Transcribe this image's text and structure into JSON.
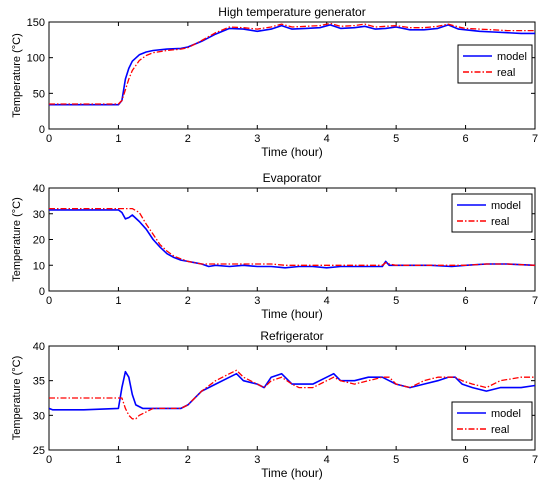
{
  "chart_data": [
    {
      "type": "line",
      "title": "High temperature generator",
      "xlabel": "Time (hour)",
      "ylabel": "Temperature (°C)",
      "xlim": [
        0,
        7
      ],
      "ylim": [
        0,
        150
      ],
      "xticks": [
        0,
        1,
        2,
        3,
        4,
        5,
        6,
        7
      ],
      "yticks": [
        0,
        50,
        100,
        150
      ],
      "xtick_labels": [
        "0",
        "1",
        "2",
        "3",
        "4",
        "5",
        "6",
        "7"
      ],
      "ytick_labels": [
        "0",
        "50",
        "100",
        "150"
      ],
      "grid": false,
      "legend": "right",
      "series": [
        {
          "name": "model",
          "color": "#0000ff",
          "style": "solid",
          "x": [
            0,
            0.5,
            1.0,
            1.05,
            1.1,
            1.15,
            1.2,
            1.3,
            1.4,
            1.5,
            1.7,
            1.9,
            2.0,
            2.2,
            2.4,
            2.6,
            2.8,
            3.0,
            3.2,
            3.35,
            3.5,
            3.7,
            3.9,
            4.05,
            4.2,
            4.4,
            4.55,
            4.7,
            4.85,
            5.0,
            5.2,
            5.4,
            5.6,
            5.75,
            5.9,
            6.0,
            6.2,
            6.4,
            6.6,
            6.8,
            7.0
          ],
          "y": [
            34,
            34,
            34,
            40,
            70,
            85,
            95,
            104,
            108,
            110,
            112,
            113,
            115,
            123,
            133,
            141,
            140,
            137,
            140,
            145,
            140,
            141,
            142,
            146,
            141,
            142,
            144,
            140,
            141,
            143,
            139,
            139,
            141,
            146,
            140,
            139,
            137,
            136,
            135,
            134,
            134
          ]
        },
        {
          "name": "real",
          "color": "#ff0000",
          "style": "dashdot",
          "x": [
            0,
            0.5,
            1.0,
            1.05,
            1.1,
            1.15,
            1.2,
            1.3,
            1.4,
            1.5,
            1.7,
            1.9,
            2.0,
            2.2,
            2.4,
            2.6,
            2.8,
            3.0,
            3.2,
            3.35,
            3.5,
            3.7,
            3.9,
            4.05,
            4.2,
            4.4,
            4.55,
            4.7,
            4.85,
            5.0,
            5.2,
            5.4,
            5.6,
            5.75,
            5.9,
            6.0,
            6.2,
            6.4,
            6.6,
            6.8,
            7.0
          ],
          "y": [
            35,
            35,
            35,
            40,
            55,
            70,
            82,
            96,
            103,
            107,
            110,
            112,
            114,
            124,
            135,
            143,
            142,
            140,
            143,
            147,
            143,
            144,
            145,
            148,
            144,
            145,
            147,
            143,
            144,
            145,
            142,
            142,
            144,
            147,
            143,
            141,
            140,
            139,
            138,
            138,
            138
          ]
        }
      ]
    },
    {
      "type": "line",
      "title": "Evaporator",
      "xlabel": "Time (hour)",
      "ylabel": "Temperature (°C)",
      "xlim": [
        0,
        7
      ],
      "ylim": [
        0,
        40
      ],
      "xticks": [
        0,
        1,
        2,
        3,
        4,
        5,
        6,
        7
      ],
      "yticks": [
        0,
        10,
        20,
        30,
        40
      ],
      "xtick_labels": [
        "0",
        "1",
        "2",
        "3",
        "4",
        "5",
        "6",
        "7"
      ],
      "ytick_labels": [
        "0",
        "10",
        "20",
        "30",
        "40"
      ],
      "grid": false,
      "legend": "top-right",
      "series": [
        {
          "name": "model",
          "color": "#0000ff",
          "style": "solid",
          "x": [
            0,
            0.5,
            1.0,
            1.05,
            1.1,
            1.15,
            1.2,
            1.3,
            1.4,
            1.5,
            1.6,
            1.7,
            1.8,
            1.9,
            2.0,
            2.1,
            2.2,
            2.3,
            2.4,
            2.6,
            2.8,
            3.0,
            3.2,
            3.4,
            3.6,
            3.8,
            4.0,
            4.2,
            4.4,
            4.6,
            4.8,
            4.85,
            4.9,
            5.0,
            5.2,
            5.5,
            5.8,
            6.0,
            6.3,
            6.6,
            7.0
          ],
          "y": [
            31.5,
            31.5,
            31.5,
            30.5,
            28,
            28.5,
            29.5,
            27,
            24,
            20,
            17,
            14.5,
            13,
            12,
            11.5,
            11,
            10.5,
            9.5,
            10,
            9.5,
            10,
            9.5,
            9.5,
            9,
            9.5,
            9.5,
            9,
            9.5,
            9.5,
            9.5,
            9.5,
            11.5,
            10,
            10,
            10,
            10,
            9.5,
            10,
            10.5,
            10.5,
            10
          ]
        },
        {
          "name": "real",
          "color": "#ff0000",
          "style": "dashdot",
          "x": [
            0,
            0.5,
            1.0,
            1.1,
            1.2,
            1.3,
            1.4,
            1.5,
            1.6,
            1.7,
            1.8,
            1.9,
            2.0,
            2.1,
            2.2,
            2.3,
            2.4,
            2.6,
            2.8,
            3.0,
            3.2,
            3.4,
            3.6,
            3.8,
            4.0,
            4.2,
            4.4,
            4.6,
            4.8,
            4.85,
            4.9,
            5.0,
            5.2,
            5.5,
            5.8,
            6.0,
            6.3,
            6.6,
            7.0
          ],
          "y": [
            32,
            32,
            32,
            32,
            32,
            30.5,
            26,
            22,
            18,
            15.5,
            13.5,
            12.5,
            11.5,
            11,
            10.5,
            10.5,
            10.5,
            10.5,
            10.5,
            10.5,
            10.5,
            10,
            10,
            10,
            10,
            10,
            10,
            10,
            10,
            11,
            10.5,
            10,
            10,
            10,
            10,
            10,
            10.5,
            10.5,
            10
          ]
        }
      ]
    },
    {
      "type": "line",
      "title": "Refrigerator",
      "xlabel": "Time (hour)",
      "ylabel": "Temperature (°C)",
      "xlim": [
        0,
        7
      ],
      "ylim": [
        25,
        40
      ],
      "xticks": [
        0,
        1,
        2,
        3,
        4,
        5,
        6,
        7
      ],
      "yticks": [
        25,
        30,
        35,
        40
      ],
      "xtick_labels": [
        "0",
        "1",
        "2",
        "3",
        "4",
        "5",
        "6",
        "7"
      ],
      "ytick_labels": [
        "25",
        "30",
        "35",
        "40"
      ],
      "grid": false,
      "legend": "bottom-right",
      "series": [
        {
          "name": "model",
          "color": "#0000ff",
          "style": "solid",
          "x": [
            0,
            0.05,
            0.5,
            1.0,
            1.05,
            1.1,
            1.15,
            1.2,
            1.25,
            1.35,
            1.5,
            1.7,
            1.9,
            2.0,
            2.2,
            2.4,
            2.6,
            2.7,
            2.8,
            3.0,
            3.1,
            3.2,
            3.35,
            3.5,
            3.6,
            3.8,
            4.0,
            4.1,
            4.2,
            4.4,
            4.6,
            4.8,
            4.9,
            5.0,
            5.2,
            5.4,
            5.6,
            5.75,
            5.85,
            5.95,
            6.1,
            6.3,
            6.5,
            6.8,
            7.0
          ],
          "y": [
            31,
            30.8,
            30.8,
            31,
            34,
            36.3,
            35.5,
            33,
            31.5,
            31,
            31,
            31,
            31,
            31.5,
            33.5,
            34.5,
            35.5,
            36,
            35,
            34.5,
            34,
            35.5,
            36,
            34.5,
            34.5,
            34.5,
            35.5,
            36,
            35,
            35,
            35.5,
            35.5,
            35,
            34.5,
            34,
            34.5,
            35,
            35.5,
            35.5,
            34.5,
            34,
            33.5,
            34,
            34,
            34.3
          ]
        },
        {
          "name": "real",
          "color": "#ff0000",
          "style": "dashdot",
          "x": [
            0,
            0.5,
            1.0,
            1.05,
            1.1,
            1.15,
            1.2,
            1.25,
            1.3,
            1.4,
            1.5,
            1.7,
            1.9,
            2.0,
            2.2,
            2.4,
            2.6,
            2.7,
            2.8,
            3.0,
            3.1,
            3.2,
            3.35,
            3.5,
            3.6,
            3.8,
            4.0,
            4.1,
            4.2,
            4.4,
            4.6,
            4.8,
            4.9,
            5.0,
            5.2,
            5.4,
            5.6,
            5.75,
            5.85,
            5.95,
            6.1,
            6.3,
            6.5,
            6.8,
            7.0
          ],
          "y": [
            32.5,
            32.5,
            32.5,
            32.5,
            31,
            30,
            29.5,
            29.5,
            30,
            30.5,
            31,
            31,
            31,
            31.5,
            33.5,
            35,
            36,
            36.5,
            35.5,
            34.5,
            34,
            35,
            35.5,
            34.5,
            34,
            34,
            35,
            35.5,
            35,
            34.5,
            35,
            35.5,
            35.5,
            34.5,
            34,
            35,
            35.5,
            35.5,
            35.5,
            35,
            34.5,
            34,
            35,
            35.5,
            35.5
          ]
        }
      ]
    }
  ]
}
